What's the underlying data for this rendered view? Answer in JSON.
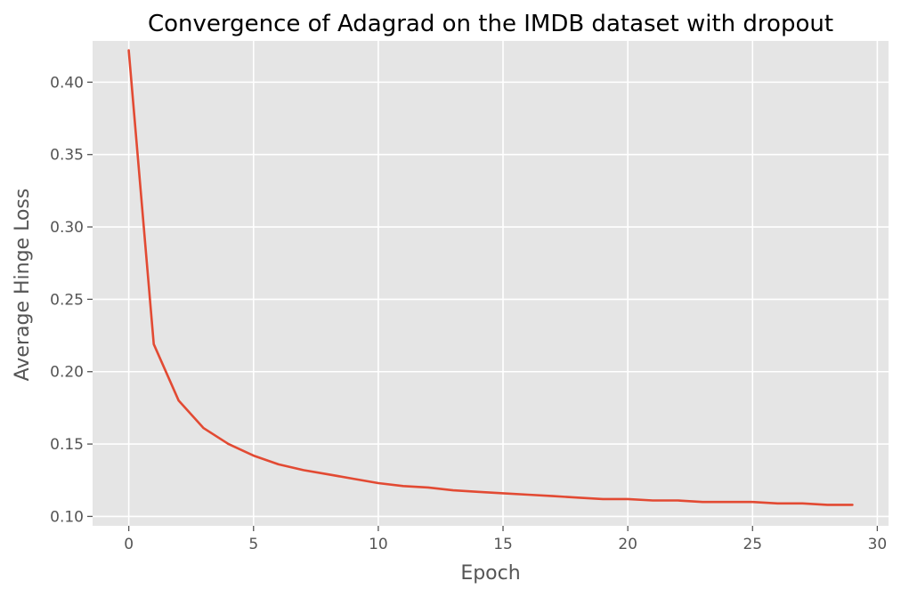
{
  "chart_data": {
    "type": "line",
    "title": "Convergence of Adagrad on the IMDB dataset with dropout",
    "xlabel": "Epoch",
    "ylabel": "Average Hinge Loss",
    "xlim": [
      -1.45,
      30.45
    ],
    "ylim": [
      0.0935,
      0.4285
    ],
    "xticks": [
      0,
      5,
      10,
      15,
      20,
      25,
      30
    ],
    "xtick_labels": [
      "0",
      "5",
      "10",
      "15",
      "20",
      "25",
      "30"
    ],
    "yticks": [
      0.1,
      0.15,
      0.2,
      0.25,
      0.3,
      0.35,
      0.4
    ],
    "ytick_labels": [
      "0.10",
      "0.15",
      "0.20",
      "0.25",
      "0.30",
      "0.35",
      "0.40"
    ],
    "grid": true,
    "series": [
      {
        "name": "Average Hinge Loss",
        "color": "#E24A33",
        "x": [
          0,
          1,
          2,
          3,
          4,
          5,
          6,
          7,
          8,
          9,
          10,
          11,
          12,
          13,
          14,
          15,
          16,
          17,
          18,
          19,
          20,
          21,
          22,
          23,
          24,
          25,
          26,
          27,
          28,
          29
        ],
        "values": [
          0.422,
          0.219,
          0.18,
          0.161,
          0.15,
          0.142,
          0.136,
          0.132,
          0.129,
          0.126,
          0.123,
          0.121,
          0.12,
          0.118,
          0.117,
          0.116,
          0.115,
          0.114,
          0.113,
          0.112,
          0.112,
          0.111,
          0.111,
          0.11,
          0.11,
          0.11,
          0.109,
          0.109,
          0.108,
          0.108
        ]
      }
    ],
    "colors": {
      "plot_background": "#E5E5E5",
      "grid": "#FFFFFF",
      "text": "#555555",
      "title": "#000000"
    }
  }
}
